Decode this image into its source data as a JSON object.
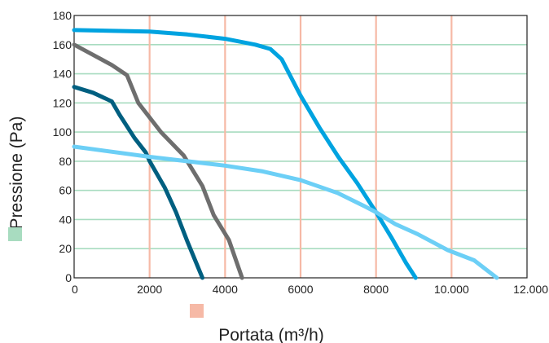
{
  "chart_data": {
    "type": "line",
    "xlabel": "Portata (m³/h)",
    "ylabel": "Pressione (Pa)",
    "xlim": [
      0,
      12000
    ],
    "ylim": [
      0,
      180
    ],
    "x_ticks": [
      0,
      2000,
      4000,
      6000,
      8000,
      10000,
      12000
    ],
    "x_tick_labels": [
      "0",
      "2000",
      "4000",
      "6000",
      "8000",
      "10.000",
      "12.000"
    ],
    "y_ticks": [
      0,
      20,
      40,
      60,
      80,
      100,
      120,
      140,
      160,
      180
    ],
    "y_tick_labels": [
      "0",
      "20",
      "40",
      "60",
      "80",
      "100",
      "120",
      "140",
      "160",
      "180"
    ],
    "grid": {
      "horizontal": true,
      "vertical": true,
      "horizontal_color": "#a8dcc0",
      "vertical_color": "#f6b9a6"
    },
    "legend_swatches": {
      "y": "#a8dcc0",
      "x": "#f6b9a6"
    },
    "series": [
      {
        "color": "#00a3e0",
        "points": [
          [
            0,
            170
          ],
          [
            2000,
            169
          ],
          [
            3000,
            167
          ],
          [
            4000,
            164
          ],
          [
            4800,
            160
          ],
          [
            5200,
            157
          ],
          [
            5500,
            150
          ],
          [
            6000,
            125
          ],
          [
            6500,
            103
          ],
          [
            7000,
            83
          ],
          [
            7500,
            65
          ],
          [
            8000,
            45
          ],
          [
            8400,
            28
          ],
          [
            8800,
            10
          ],
          [
            9050,
            0
          ]
        ]
      },
      {
        "color": "#6e6e6e",
        "points": [
          [
            0,
            160
          ],
          [
            500,
            153
          ],
          [
            1000,
            146
          ],
          [
            1400,
            139
          ],
          [
            1700,
            120
          ],
          [
            2300,
            100
          ],
          [
            2900,
            84
          ],
          [
            3400,
            63
          ],
          [
            3700,
            43
          ],
          [
            4100,
            26
          ],
          [
            4450,
            0
          ]
        ]
      },
      {
        "color": "#005f80",
        "points": [
          [
            0,
            131
          ],
          [
            500,
            127
          ],
          [
            1000,
            121
          ],
          [
            1200,
            112
          ],
          [
            1600,
            96
          ],
          [
            1900,
            86
          ],
          [
            2000,
            80
          ],
          [
            2400,
            62
          ],
          [
            2700,
            45
          ],
          [
            3000,
            25
          ],
          [
            3400,
            0
          ]
        ]
      },
      {
        "color": "#6ccff6",
        "points": [
          [
            0,
            90
          ],
          [
            2000,
            83
          ],
          [
            4000,
            77
          ],
          [
            5000,
            73
          ],
          [
            6000,
            67
          ],
          [
            7000,
            58
          ],
          [
            7700,
            49
          ],
          [
            8000,
            45
          ],
          [
            8500,
            37
          ],
          [
            9100,
            30
          ],
          [
            9900,
            19
          ],
          [
            10600,
            12
          ],
          [
            11200,
            0
          ]
        ]
      }
    ]
  }
}
